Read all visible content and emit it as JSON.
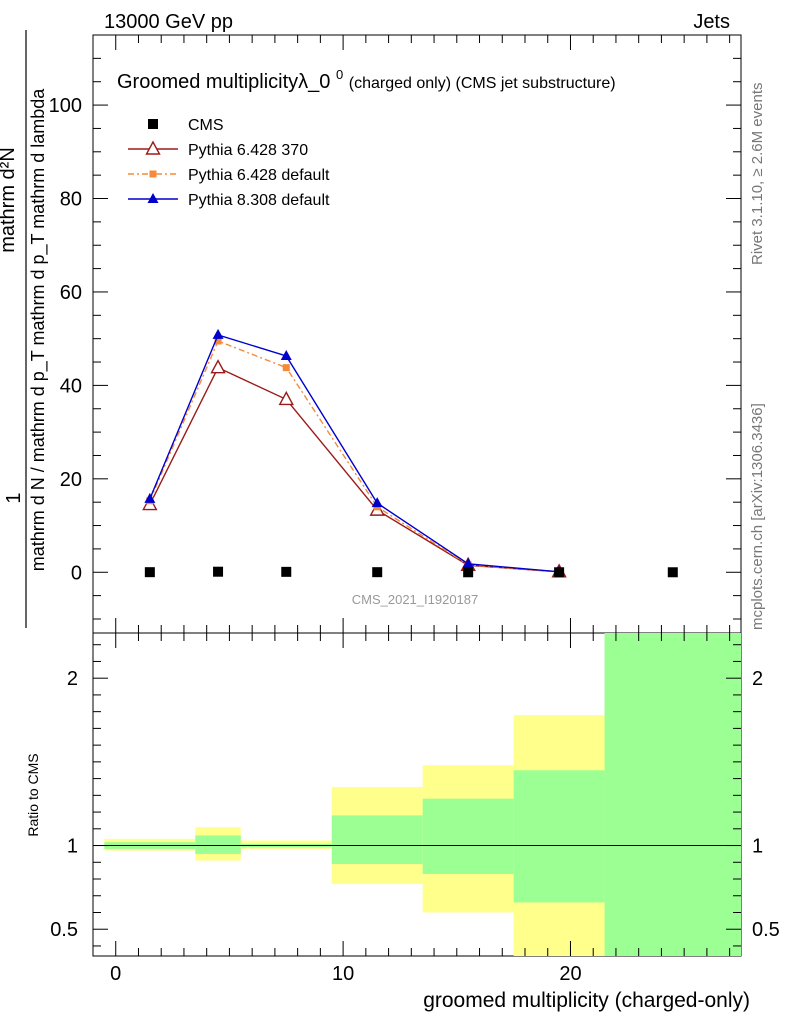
{
  "header": {
    "left": "13000 GeV pp",
    "right": "Jets"
  },
  "side_texts": {
    "rivet": "Rivet 3.1.10, ≥ 2.6M events",
    "mcplots": "mcplots.cern.ch [arXiv:1306.3436]"
  },
  "watermark": "CMS_2021_I1920187",
  "chart_data": [
    {
      "type": "line",
      "title_main": "Groomed multiplicityλ_0",
      "title_sup": "0",
      "title_rest": " (charged only) (CMS jet substructure)",
      "ylabel_top": "mathrm d²N",
      "ylabel_bottom": "mathrm d N / mathrm d p_T mathrm d p_T mathrm d lambda",
      "ylabel_one": "1",
      "ylim": [
        -13,
        115
      ],
      "xlim": [
        -1,
        27.5
      ],
      "y_ticks": [
        0,
        20,
        40,
        60,
        80,
        100
      ],
      "series": [
        {
          "name": "CMS",
          "marker": "square",
          "color": "#000000",
          "x": [
            1.5,
            4.5,
            7.5,
            11.5,
            15.5,
            19.5,
            24.5
          ],
          "y": [
            0.02,
            0.12,
            0.09,
            0.02,
            0.0,
            0.0,
            0.0
          ]
        },
        {
          "name": "Pythia 6.428 370",
          "marker": "open-triangle",
          "color": "#9b1b1b",
          "x": [
            1.5,
            4.5,
            7.5,
            11.5,
            15.5,
            19.5
          ],
          "y": [
            14.5,
            43.8,
            37.0,
            13.3,
            1.5,
            0.1
          ]
        },
        {
          "name": "Pythia 6.428 default",
          "marker": "filled-square",
          "color": "#f58a3a",
          "x": [
            1.5,
            4.5,
            7.5,
            11.5,
            15.5,
            19.5
          ],
          "y": [
            15.3,
            49.5,
            43.8,
            14.0,
            1.6,
            0.1
          ]
        },
        {
          "name": "Pythia 8.308 default",
          "marker": "filled-triangle",
          "color": "#0000cc",
          "x": [
            1.5,
            4.5,
            7.5,
            11.5,
            15.5,
            19.5
          ],
          "y": [
            15.7,
            50.8,
            46.3,
            14.8,
            1.8,
            0.1
          ]
        }
      ]
    },
    {
      "type": "ratio-band",
      "ylabel": "Ratio to CMS",
      "xlabel": "groomed multiplicity (charged-only)",
      "ylim": [
        0.34,
        2.27
      ],
      "xlim": [
        -1,
        27.5
      ],
      "y_ticks": [
        0.5,
        1,
        2
      ],
      "y_tick_labels": [
        "0.5",
        "1",
        "2"
      ],
      "x_ticks": [
        0,
        10,
        20
      ],
      "bins": [
        {
          "x0": -0.5,
          "x1": 3.5,
          "yellow": [
            0.97,
            1.04
          ],
          "green": [
            0.98,
            1.02
          ]
        },
        {
          "x0": 3.5,
          "x1": 5.5,
          "yellow": [
            0.91,
            1.11
          ],
          "green": [
            0.95,
            1.06
          ]
        },
        {
          "x0": 5.5,
          "x1": 9.5,
          "yellow": [
            0.98,
            1.03
          ],
          "green": [
            0.99,
            1.01
          ]
        },
        {
          "x0": 9.5,
          "x1": 13.5,
          "yellow": [
            0.77,
            1.35
          ],
          "green": [
            0.89,
            1.18
          ]
        },
        {
          "x0": 13.5,
          "x1": 17.5,
          "yellow": [
            0.6,
            1.48
          ],
          "green": [
            0.83,
            1.28
          ]
        },
        {
          "x0": 17.5,
          "x1": 21.5,
          "yellow": [
            0.34,
            1.78
          ],
          "green": [
            0.66,
            1.45
          ]
        },
        {
          "x0": 21.5,
          "x1": 27.5,
          "yellow": [
            0.34,
            2.27
          ],
          "green": [
            0.34,
            2.27
          ]
        }
      ]
    }
  ]
}
